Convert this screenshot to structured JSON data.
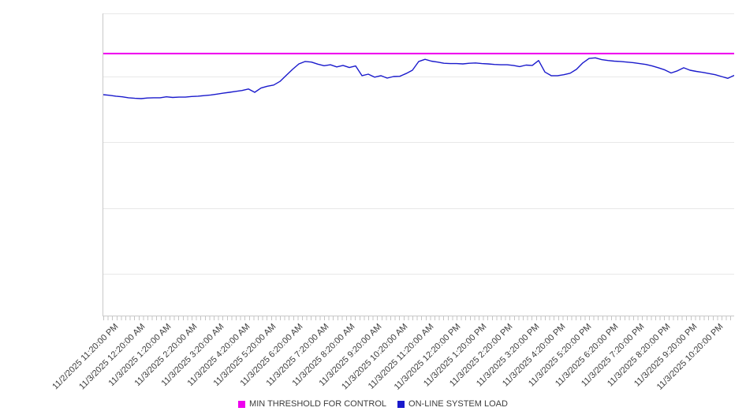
{
  "chart_data": {
    "type": "line",
    "title": "",
    "xlabel": "",
    "ylabel": "",
    "ylim": [
      0,
      100
    ],
    "y_axis_labels_visible": false,
    "grid": "horizontal",
    "legend_position": "bottom",
    "x_tick_labels": [
      "11/2/2025 11:20:00 PM",
      "11/3/2025 12:20:00 AM",
      "11/3/2025 1:20:00 AM",
      "11/3/2025 2:20:00 AM",
      "11/3/2025 3:20:00 AM",
      "11/3/2025 4:20:00 AM",
      "11/3/2025 5:20:00 AM",
      "11/3/2025 6:20:00 AM",
      "11/3/2025 7:20:00 AM",
      "11/3/2025 8:20:00 AM",
      "11/3/2025 9:20:00 AM",
      "11/3/2025 10:20:00 AM",
      "11/3/2025 11:20:00 AM",
      "11/3/2025 12:20:00 PM",
      "11/3/2025 1:20:00 PM",
      "11/3/2025 2:20:00 PM",
      "11/3/2025 3:20:00 PM",
      "11/3/2025 4:20:00 PM",
      "11/3/2025 5:20:00 PM",
      "11/3/2025 6:20:00 PM",
      "11/3/2025 7:20:00 PM",
      "11/3/2025 8:20:00 PM",
      "11/3/2025 9:20:00 PM",
      "11/3/2025 10:20:00 PM"
    ],
    "series": [
      {
        "name": "MIN THRESHOLD FOR CONTROL",
        "color": "#ee00ee",
        "style": "threshold",
        "value": 86.7
      },
      {
        "name": "ON-LINE SYSTEM LOAD",
        "color": "#1a1acc",
        "style": "line",
        "values": [
          73.1,
          72.9,
          72.6,
          72.4,
          72.1,
          71.9,
          71.8,
          72.0,
          72.1,
          72.1,
          72.4,
          72.2,
          72.3,
          72.3,
          72.5,
          72.6,
          72.8,
          73.0,
          73.3,
          73.6,
          73.9,
          74.2,
          74.5,
          75.0,
          73.9,
          75.3,
          75.9,
          76.3,
          77.5,
          79.5,
          81.5,
          83.3,
          84.1,
          83.9,
          83.2,
          82.7,
          83.0,
          82.3,
          82.8,
          82.1,
          82.6,
          79.4,
          79.9,
          78.9,
          79.4,
          78.6,
          79.1,
          79.2,
          80.1,
          81.2,
          84.1,
          84.8,
          84.2,
          83.9,
          83.5,
          83.4,
          83.4,
          83.3,
          83.5,
          83.6,
          83.4,
          83.3,
          83.1,
          83.0,
          83.0,
          82.8,
          82.4,
          82.9,
          82.8,
          84.4,
          80.6,
          79.4,
          79.4,
          79.7,
          80.2,
          81.5,
          83.6,
          85.1,
          85.3,
          84.7,
          84.4,
          84.2,
          84.1,
          83.9,
          83.7,
          83.4,
          83.1,
          82.6,
          82.0,
          81.3,
          80.3,
          81.0,
          82.0,
          81.2,
          80.8,
          80.5,
          80.1,
          79.7,
          79.1,
          78.5,
          79.5
        ]
      }
    ]
  },
  "legend": {
    "items": [
      {
        "label": "MIN THRESHOLD FOR CONTROL",
        "color": "#ee00ee"
      },
      {
        "label": "ON-LINE SYSTEM LOAD",
        "color": "#1a1acc"
      }
    ]
  }
}
